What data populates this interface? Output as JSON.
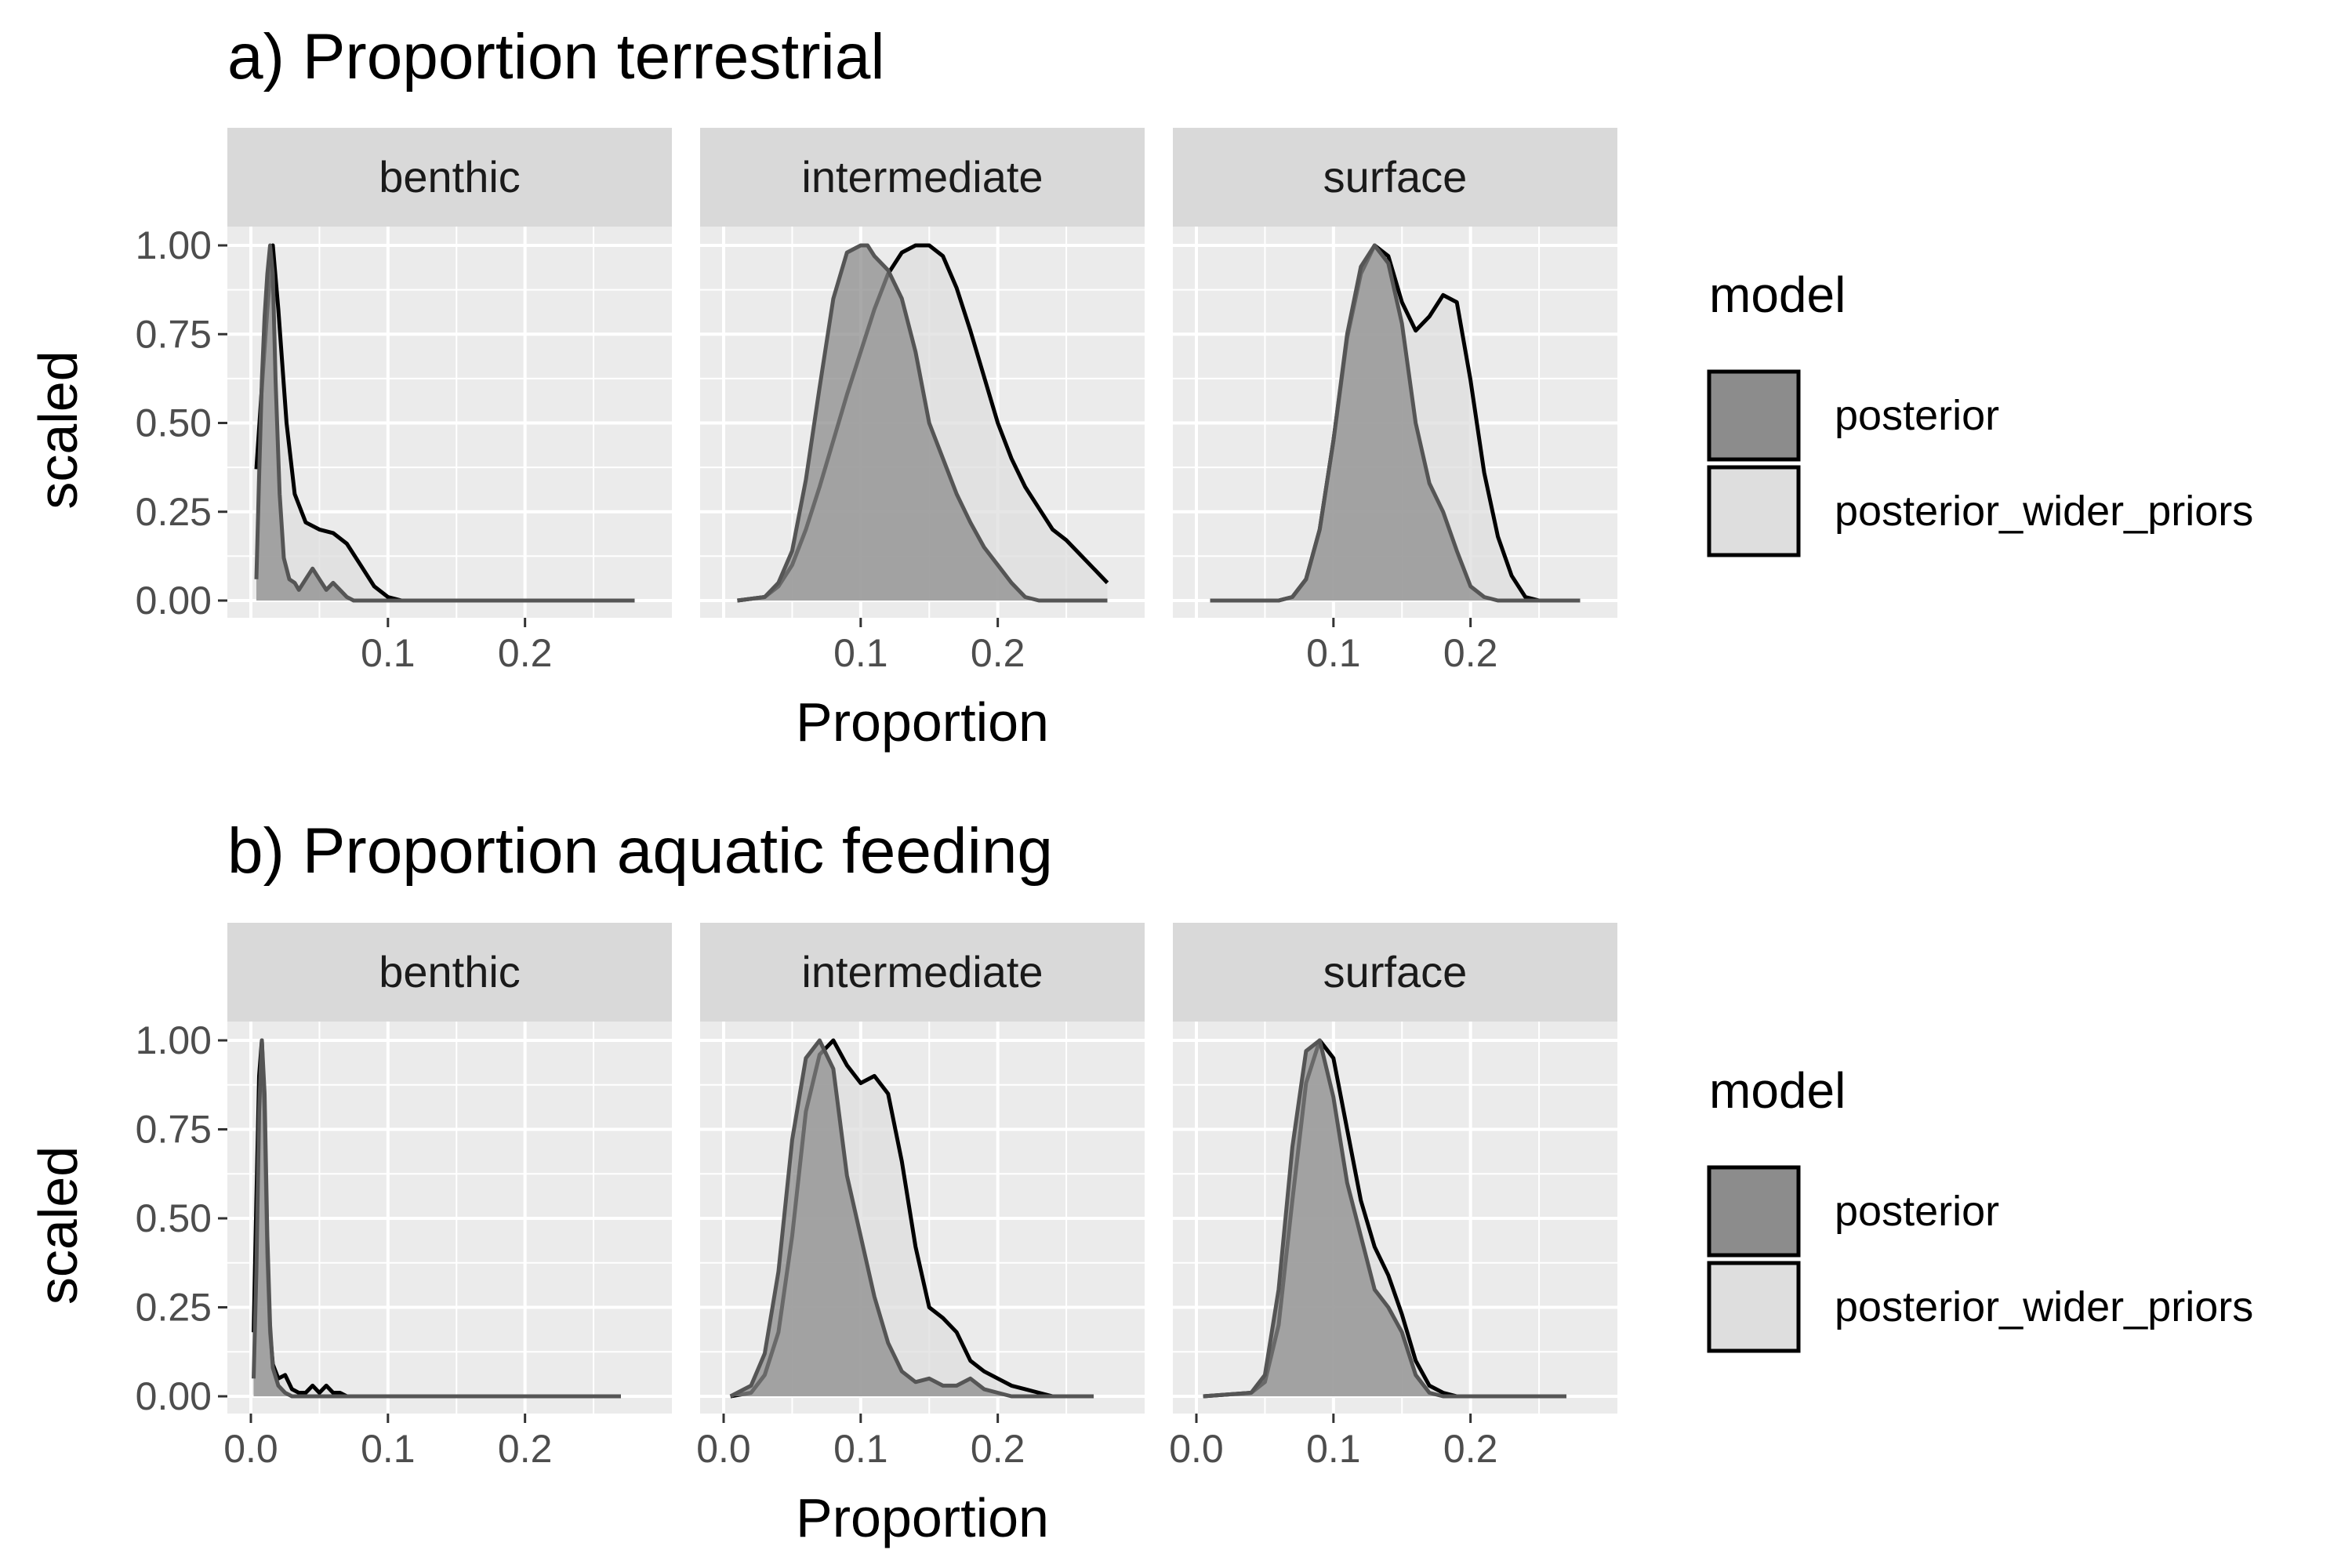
{
  "colors": {
    "panel_bg": "#EBEBEB",
    "strip_bg": "#D9D9D9",
    "grid": "#FFFFFF",
    "posterior_fill": "#8C8C8C",
    "wider_fill": "#DEDEDE",
    "posterior_line": "#555555",
    "wider_line": "#000000"
  },
  "chart_data": [
    {
      "type": "area",
      "title": "a) Proportion terrestrial",
      "xlabel": "Proportion",
      "ylabel": "scaled",
      "xlim": [
        0.0,
        0.29
      ],
      "ylim": [
        0,
        1.0
      ],
      "y_ticks": [
        0,
        0.25,
        0.5,
        0.75,
        1.0
      ],
      "y_tick_labels": [
        "0.00",
        "0.25",
        "0.50",
        "0.75",
        "1.00"
      ],
      "x_ticks": [
        0.1,
        0.2
      ],
      "x_tick_labels": [
        "0.1",
        "0.2"
      ],
      "grid": true,
      "legend": {
        "title": "model",
        "position": "right",
        "entries": [
          "posterior",
          "posterior_wider_priors"
        ]
      },
      "facets": [
        {
          "label": "benthic",
          "series": [
            {
              "name": "posterior",
              "x": [
                0.004,
                0.006,
                0.008,
                0.01,
                0.012,
                0.014,
                0.016,
                0.018,
                0.021,
                0.024,
                0.028,
                0.032,
                0.035,
                0.04,
                0.045,
                0.05,
                0.055,
                0.06,
                0.065,
                0.07,
                0.075,
                0.08,
                0.09,
                0.1,
                0.28
              ],
              "y": [
                0.06,
                0.35,
                0.62,
                0.8,
                0.92,
                1.0,
                0.92,
                0.62,
                0.3,
                0.12,
                0.06,
                0.05,
                0.03,
                0.06,
                0.09,
                0.06,
                0.03,
                0.05,
                0.03,
                0.01,
                0.0,
                0.0,
                0.0,
                0.0,
                0.0
              ]
            },
            {
              "name": "posterior_wider_priors",
              "x": [
                0.004,
                0.008,
                0.012,
                0.016,
                0.02,
                0.026,
                0.032,
                0.04,
                0.05,
                0.06,
                0.07,
                0.08,
                0.09,
                0.1,
                0.11,
                0.12,
                0.14,
                0.28
              ],
              "y": [
                0.37,
                0.6,
                0.82,
                1.0,
                0.82,
                0.5,
                0.3,
                0.22,
                0.2,
                0.19,
                0.16,
                0.1,
                0.04,
                0.01,
                0.0,
                0.0,
                0.0,
                0.0
              ]
            }
          ]
        },
        {
          "label": "intermediate",
          "series": [
            {
              "name": "posterior",
              "x": [
                0.01,
                0.03,
                0.04,
                0.05,
                0.06,
                0.07,
                0.08,
                0.09,
                0.1,
                0.105,
                0.11,
                0.12,
                0.13,
                0.14,
                0.15,
                0.16,
                0.17,
                0.18,
                0.19,
                0.2,
                0.21,
                0.22,
                0.23,
                0.28
              ],
              "y": [
                0.0,
                0.01,
                0.05,
                0.14,
                0.34,
                0.6,
                0.85,
                0.98,
                1.0,
                1.0,
                0.97,
                0.93,
                0.85,
                0.7,
                0.5,
                0.4,
                0.3,
                0.22,
                0.15,
                0.1,
                0.05,
                0.01,
                0.0,
                0.0
              ]
            },
            {
              "name": "posterior_wider_priors",
              "x": [
                0.01,
                0.03,
                0.04,
                0.05,
                0.06,
                0.07,
                0.08,
                0.09,
                0.1,
                0.11,
                0.12,
                0.13,
                0.14,
                0.15,
                0.16,
                0.17,
                0.18,
                0.19,
                0.2,
                0.21,
                0.22,
                0.23,
                0.24,
                0.25,
                0.26,
                0.27,
                0.28
              ],
              "y": [
                0.0,
                0.01,
                0.04,
                0.1,
                0.2,
                0.32,
                0.45,
                0.58,
                0.7,
                0.82,
                0.92,
                0.98,
                1.0,
                1.0,
                0.97,
                0.88,
                0.76,
                0.63,
                0.5,
                0.4,
                0.32,
                0.26,
                0.2,
                0.17,
                0.13,
                0.09,
                0.05
              ]
            }
          ]
        },
        {
          "label": "surface",
          "series": [
            {
              "name": "posterior",
              "x": [
                0.01,
                0.06,
                0.07,
                0.08,
                0.09,
                0.1,
                0.11,
                0.12,
                0.13,
                0.14,
                0.15,
                0.16,
                0.17,
                0.18,
                0.19,
                0.2,
                0.21,
                0.22,
                0.28
              ],
              "y": [
                0.0,
                0.0,
                0.01,
                0.06,
                0.2,
                0.45,
                0.75,
                0.94,
                1.0,
                0.95,
                0.78,
                0.5,
                0.33,
                0.25,
                0.14,
                0.04,
                0.01,
                0.0,
                0.0
              ]
            },
            {
              "name": "posterior_wider_priors",
              "x": [
                0.01,
                0.06,
                0.07,
                0.08,
                0.09,
                0.1,
                0.11,
                0.12,
                0.13,
                0.14,
                0.15,
                0.16,
                0.17,
                0.18,
                0.19,
                0.2,
                0.21,
                0.22,
                0.23,
                0.24,
                0.25,
                0.28
              ],
              "y": [
                0.0,
                0.0,
                0.01,
                0.06,
                0.2,
                0.45,
                0.74,
                0.92,
                1.0,
                0.97,
                0.84,
                0.76,
                0.8,
                0.86,
                0.84,
                0.62,
                0.36,
                0.18,
                0.07,
                0.01,
                0.0,
                0.0
              ]
            }
          ]
        }
      ]
    },
    {
      "type": "area",
      "title": "b) Proportion aquatic feeding",
      "xlabel": "Proportion",
      "ylabel": "scaled",
      "xlim": [
        0.0,
        0.29
      ],
      "ylim": [
        0,
        1.0
      ],
      "y_ticks": [
        0,
        0.25,
        0.5,
        0.75,
        1.0
      ],
      "y_tick_labels": [
        "0.00",
        "0.25",
        "0.50",
        "0.75",
        "1.00"
      ],
      "x_ticks": [
        0.0,
        0.1,
        0.2
      ],
      "x_tick_labels": [
        "0.0",
        "0.1",
        "0.2"
      ],
      "grid": true,
      "legend": {
        "title": "model",
        "position": "right",
        "entries": [
          "posterior",
          "posterior_wider_priors"
        ]
      },
      "facets": [
        {
          "label": "benthic",
          "series": [
            {
              "name": "posterior",
              "x": [
                0.002,
                0.004,
                0.006,
                0.008,
                0.01,
                0.012,
                0.014,
                0.016,
                0.02,
                0.025,
                0.03,
                0.035,
                0.27
              ],
              "y": [
                0.05,
                0.35,
                0.8,
                1.0,
                0.85,
                0.45,
                0.2,
                0.08,
                0.03,
                0.01,
                0.0,
                0.0,
                0.0
              ]
            },
            {
              "name": "posterior_wider_priors",
              "x": [
                0.002,
                0.004,
                0.006,
                0.008,
                0.01,
                0.012,
                0.014,
                0.016,
                0.02,
                0.025,
                0.03,
                0.035,
                0.04,
                0.045,
                0.05,
                0.055,
                0.06,
                0.065,
                0.07,
                0.27
              ],
              "y": [
                0.18,
                0.55,
                0.9,
                1.0,
                0.8,
                0.4,
                0.18,
                0.09,
                0.05,
                0.06,
                0.02,
                0.01,
                0.01,
                0.03,
                0.01,
                0.03,
                0.01,
                0.01,
                0.0,
                0.0
              ]
            }
          ]
        },
        {
          "label": "intermediate",
          "series": [
            {
              "name": "posterior",
              "x": [
                0.005,
                0.02,
                0.03,
                0.04,
                0.05,
                0.06,
                0.07,
                0.08,
                0.09,
                0.1,
                0.11,
                0.12,
                0.13,
                0.14,
                0.15,
                0.16,
                0.17,
                0.18,
                0.19,
                0.2,
                0.21,
                0.27
              ],
              "y": [
                0.0,
                0.03,
                0.12,
                0.35,
                0.72,
                0.95,
                1.0,
                0.92,
                0.62,
                0.45,
                0.28,
                0.15,
                0.07,
                0.04,
                0.05,
                0.03,
                0.03,
                0.05,
                0.02,
                0.01,
                0.0,
                0.0
              ]
            },
            {
              "name": "posterior_wider_priors",
              "x": [
                0.005,
                0.02,
                0.03,
                0.04,
                0.05,
                0.06,
                0.07,
                0.08,
                0.09,
                0.1,
                0.11,
                0.12,
                0.13,
                0.14,
                0.15,
                0.16,
                0.17,
                0.18,
                0.19,
                0.2,
                0.21,
                0.22,
                0.23,
                0.24,
                0.25,
                0.27
              ],
              "y": [
                0.0,
                0.01,
                0.06,
                0.18,
                0.45,
                0.8,
                0.96,
                1.0,
                0.93,
                0.88,
                0.9,
                0.85,
                0.66,
                0.42,
                0.25,
                0.22,
                0.18,
                0.1,
                0.07,
                0.05,
                0.03,
                0.02,
                0.01,
                0.0,
                0.0,
                0.0
              ]
            }
          ]
        },
        {
          "label": "surface",
          "series": [
            {
              "name": "posterior",
              "x": [
                0.005,
                0.04,
                0.05,
                0.06,
                0.07,
                0.08,
                0.09,
                0.1,
                0.11,
                0.12,
                0.13,
                0.14,
                0.15,
                0.16,
                0.17,
                0.18,
                0.19,
                0.27
              ],
              "y": [
                0.0,
                0.01,
                0.06,
                0.3,
                0.7,
                0.97,
                1.0,
                0.84,
                0.6,
                0.45,
                0.3,
                0.25,
                0.18,
                0.06,
                0.01,
                0.0,
                0.0,
                0.0
              ]
            },
            {
              "name": "posterior_wider_priors",
              "x": [
                0.005,
                0.04,
                0.05,
                0.06,
                0.07,
                0.08,
                0.09,
                0.1,
                0.11,
                0.12,
                0.13,
                0.14,
                0.15,
                0.16,
                0.17,
                0.18,
                0.19,
                0.27
              ],
              "y": [
                0.0,
                0.01,
                0.04,
                0.2,
                0.55,
                0.88,
                1.0,
                0.95,
                0.75,
                0.55,
                0.42,
                0.34,
                0.23,
                0.1,
                0.03,
                0.01,
                0.0,
                0.0
              ]
            }
          ]
        }
      ]
    }
  ]
}
